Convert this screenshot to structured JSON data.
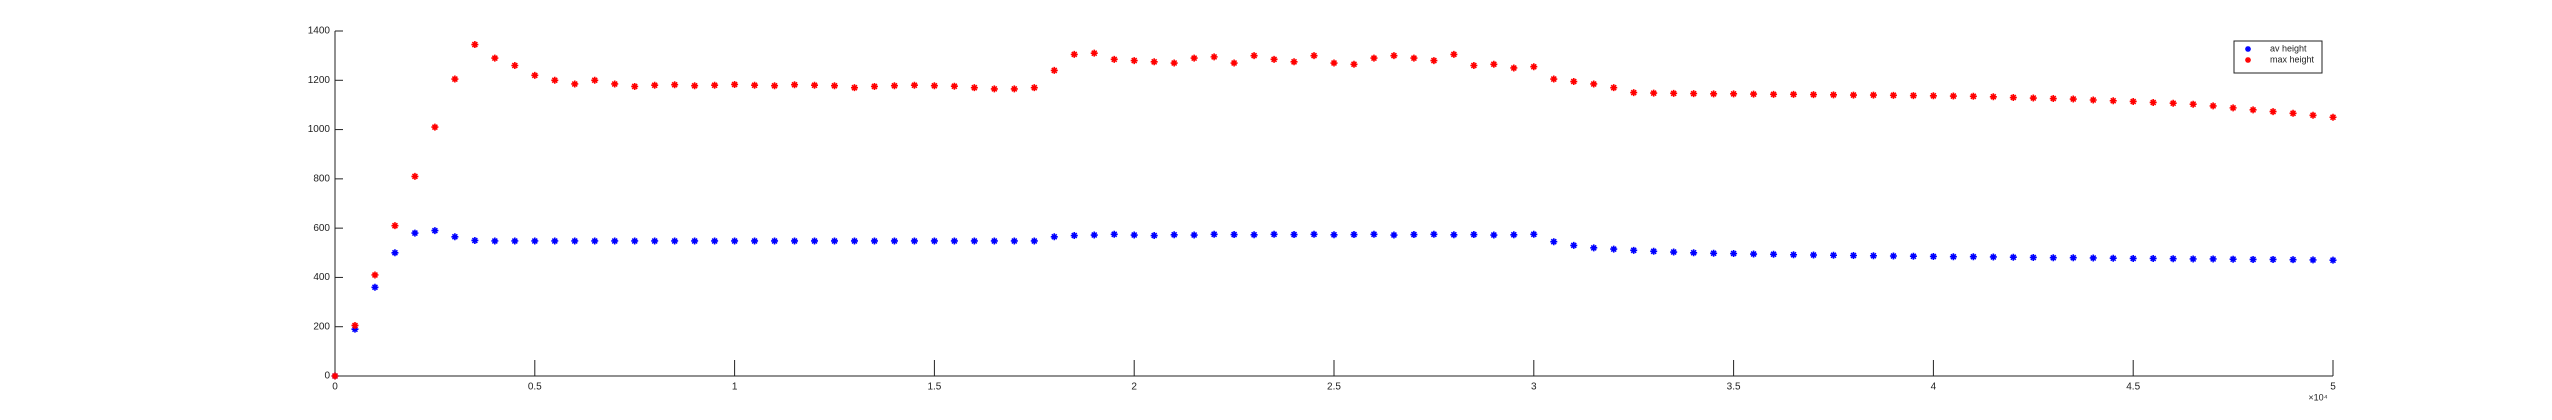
{
  "chart_data": {
    "type": "scatter",
    "x": [
      0,
      0.05,
      0.1,
      0.15,
      0.2,
      0.25,
      0.3,
      0.35,
      0.4,
      0.45,
      0.5,
      0.55,
      0.6,
      0.65,
      0.7,
      0.75,
      0.8,
      0.85,
      0.9,
      0.95,
      1,
      1.05,
      1.1,
      1.15,
      1.2,
      1.25,
      1.3,
      1.35,
      1.4,
      1.45,
      1.5,
      1.55,
      1.6,
      1.65,
      1.7,
      1.75,
      1.8,
      1.85,
      1.9,
      1.95,
      2,
      2.05,
      2.1,
      2.15,
      2.2,
      2.25,
      2.3,
      2.35,
      2.4,
      2.45,
      2.5,
      2.55,
      2.6,
      2.65,
      2.7,
      2.75,
      2.8,
      2.85,
      2.9,
      2.95,
      3,
      3.05,
      3.1,
      3.15,
      3.2,
      3.25,
      3.3,
      3.35,
      3.4,
      3.45,
      3.5,
      3.55,
      3.6,
      3.65,
      3.7,
      3.75,
      3.8,
      3.85,
      3.9,
      3.95,
      4,
      4.05,
      4.1,
      4.15,
      4.2,
      4.25,
      4.3,
      4.35,
      4.4,
      4.45,
      4.5,
      4.55,
      4.6,
      4.65,
      4.7,
      4.75,
      4.8,
      4.85,
      4.9,
      4.95,
      5
    ],
    "series": [
      {
        "name": "av height",
        "color": "#0000ff",
        "values": [
          0,
          190,
          360,
          500,
          580,
          590,
          565,
          550,
          548,
          548,
          548,
          548,
          548,
          548,
          548,
          548,
          548,
          548,
          548,
          548,
          548,
          548,
          548,
          548,
          548,
          548,
          548,
          548,
          548,
          548,
          548,
          548,
          548,
          548,
          548,
          548,
          565,
          570,
          572,
          575,
          572,
          570,
          573,
          572,
          575,
          574,
          573,
          575,
          574,
          575,
          573,
          574,
          575,
          572,
          574,
          575,
          573,
          574,
          572,
          573,
          575,
          545,
          530,
          520,
          515,
          510,
          506,
          503,
          500,
          498,
          497,
          495,
          494,
          492,
          491,
          490,
          489,
          488,
          487,
          486,
          485,
          484,
          484,
          483,
          482,
          481,
          480,
          480,
          479,
          478,
          477,
          477,
          476,
          475,
          475,
          474,
          473,
          473,
          472,
          471,
          470
        ]
      },
      {
        "name": "max height",
        "color": "#ff0000",
        "values": [
          0,
          205,
          410,
          610,
          810,
          1010,
          1205,
          1345,
          1290,
          1260,
          1220,
          1200,
          1185,
          1200,
          1185,
          1175,
          1180,
          1182,
          1178,
          1180,
          1183,
          1180,
          1178,
          1182,
          1180,
          1178,
          1170,
          1175,
          1178,
          1180,
          1178,
          1176,
          1170,
          1165,
          1165,
          1170,
          1240,
          1305,
          1310,
          1285,
          1280,
          1275,
          1270,
          1290,
          1295,
          1270,
          1300,
          1285,
          1275,
          1300,
          1270,
          1265,
          1290,
          1300,
          1290,
          1280,
          1305,
          1260,
          1265,
          1250,
          1255,
          1205,
          1195,
          1185,
          1170,
          1150,
          1148,
          1147,
          1146,
          1145,
          1145,
          1144,
          1143,
          1143,
          1142,
          1141,
          1140,
          1140,
          1139,
          1138,
          1137,
          1136,
          1135,
          1133,
          1130,
          1128,
          1126,
          1124,
          1120,
          1117,
          1114,
          1110,
          1107,
          1103,
          1096,
          1088,
          1080,
          1073,
          1066,
          1058,
          1050
        ]
      }
    ],
    "xlim": [
      0,
      5
    ],
    "xticks": [
      0,
      0.5,
      1,
      1.5,
      2,
      2.5,
      3,
      3.5,
      4,
      4.5,
      5
    ],
    "ylim": [
      0,
      1400
    ],
    "yticks": [
      0,
      200,
      400,
      600,
      800,
      1000,
      1200,
      1400
    ],
    "x_scale_label": "×10⁴",
    "legend": "northeast",
    "grid": false
  }
}
